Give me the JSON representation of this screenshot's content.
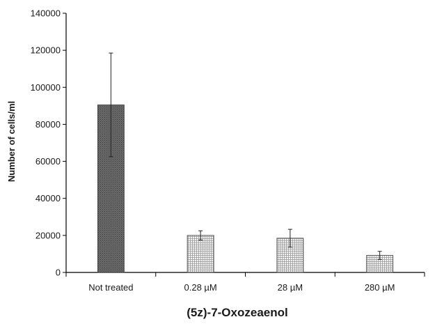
{
  "chart_data": {
    "type": "bar",
    "categories": [
      "Not treated",
      "0.28 µM",
      "28 µM",
      "280 µM"
    ],
    "values": [
      90500,
      20000,
      18500,
      9200
    ],
    "errors": [
      28000,
      2500,
      4800,
      2200
    ],
    "xlabel": "(5z)-7-Oxozeaenol",
    "ylabel": "Number of cells/ml",
    "ylim": [
      0,
      140000
    ],
    "yticks": [
      0,
      20000,
      40000,
      60000,
      80000,
      100000,
      120000,
      140000
    ],
    "bar_fills": [
      "dark-gray-stipple",
      "light-dotted-grid",
      "light-dotted-grid",
      "light-dotted-grid"
    ],
    "colors": {
      "bar_dark": "#5a5a5a",
      "bar_light": "#e6e6e6",
      "axis": "#000000"
    },
    "grid": false,
    "legend": "none"
  }
}
